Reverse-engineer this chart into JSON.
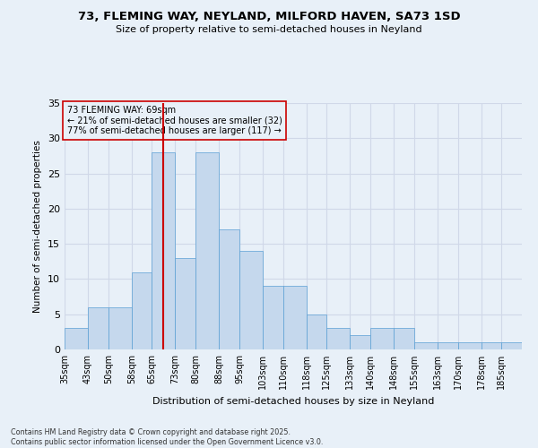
{
  "title1": "73, FLEMING WAY, NEYLAND, MILFORD HAVEN, SA73 1SD",
  "title2": "Size of property relative to semi-detached houses in Neyland",
  "xlabel": "Distribution of semi-detached houses by size in Neyland",
  "ylabel": "Number of semi-detached properties",
  "footnote": "Contains HM Land Registry data © Crown copyright and database right 2025.\nContains public sector information licensed under the Open Government Licence v3.0.",
  "annotation_line1": "73 FLEMING WAY: 69sqm",
  "annotation_line2": "← 21% of semi-detached houses are smaller (32)",
  "annotation_line3": "77% of semi-detached houses are larger (117) →",
  "property_size": 69,
  "bin_labels": [
    "35sqm",
    "43sqm",
    "50sqm",
    "58sqm",
    "65sqm",
    "73sqm",
    "80sqm",
    "88sqm",
    "95sqm",
    "103sqm",
    "110sqm",
    "118sqm",
    "125sqm",
    "133sqm",
    "140sqm",
    "148sqm",
    "155sqm",
    "163sqm",
    "170sqm",
    "178sqm",
    "185sqm"
  ],
  "bin_edges": [
    35,
    43,
    50,
    58,
    65,
    73,
    80,
    88,
    95,
    103,
    110,
    118,
    125,
    133,
    140,
    148,
    155,
    163,
    170,
    178,
    185
  ],
  "counts": [
    3,
    6,
    6,
    11,
    28,
    13,
    28,
    17,
    14,
    9,
    9,
    5,
    3,
    2,
    3,
    3,
    1,
    1,
    1,
    1,
    1
  ],
  "bar_color": "#c5d8ed",
  "bar_edge_color": "#5a9fd4",
  "vline_color": "#cc0000",
  "box_edge_color": "#cc0000",
  "grid_color": "#d0d8e8",
  "bg_color": "#e8f0f8",
  "ylim": [
    0,
    35
  ],
  "yticks": [
    0,
    5,
    10,
    15,
    20,
    25,
    30,
    35
  ]
}
